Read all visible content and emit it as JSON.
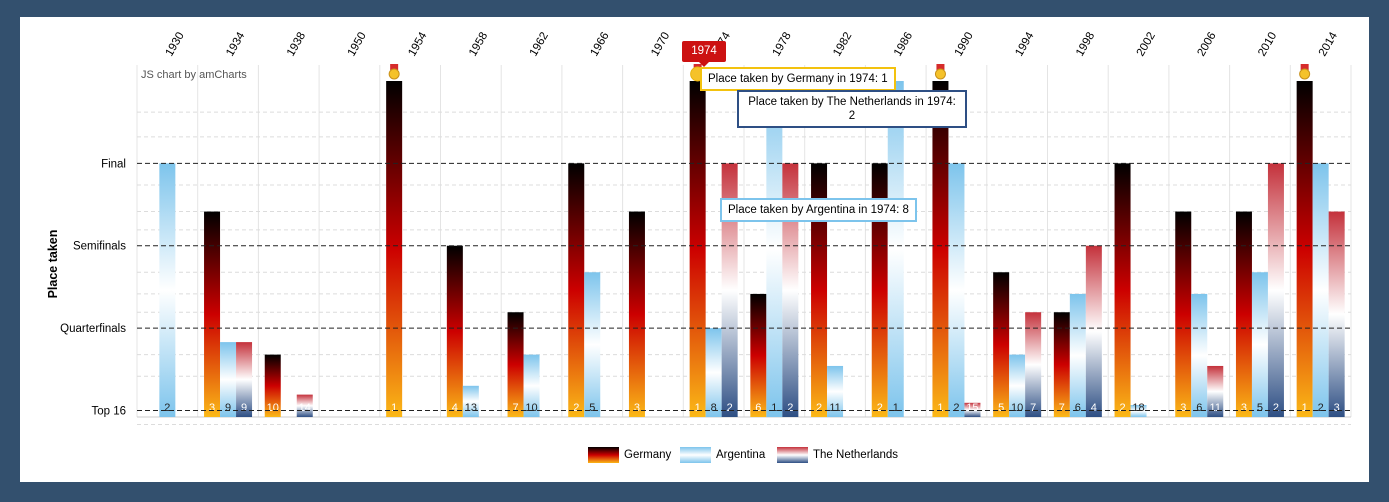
{
  "credit": "JS chart by amCharts",
  "colors": {
    "background_outer": "#33506e",
    "germany_gradient": [
      "#000000",
      "#cc0000",
      "#fbb817"
    ],
    "argentina_gradient": [
      "#7dc4ec",
      "#ffffff",
      "#7dc4ec"
    ],
    "netherlands_gradient": [
      "#c4313b",
      "#ffffff",
      "#2e4f84"
    ],
    "highlight": "#cc1111"
  },
  "icons": [
    "medal-icon"
  ],
  "chart_data": {
    "type": "bar",
    "ylabel": "Place taken",
    "y_reversed": true,
    "y_scale": "log",
    "ylim": [
      1,
      20
    ],
    "y_guides": [
      {
        "label": "Final",
        "value": 2
      },
      {
        "label": "Semifinals",
        "value": 4
      },
      {
        "label": "Quarterfinals",
        "value": 8
      },
      {
        "label": "Top 16",
        "value": 16
      }
    ],
    "categories": [
      "1930",
      "1934",
      "1938",
      "1950",
      "1954",
      "1958",
      "1962",
      "1966",
      "1970",
      "1974",
      "1978",
      "1982",
      "1986",
      "1990",
      "1994",
      "1998",
      "2002",
      "2006",
      "2010",
      "2014"
    ],
    "series": [
      {
        "name": "Germany",
        "values": [
          null,
          3,
          10,
          null,
          1,
          4,
          7,
          2,
          3,
          1,
          6,
          2,
          2,
          1,
          5,
          7,
          2,
          3,
          3,
          1
        ]
      },
      {
        "name": "Argentina",
        "values": [
          2,
          9,
          null,
          null,
          null,
          13,
          10,
          5,
          null,
          8,
          1,
          11,
          1,
          2,
          10,
          6,
          18,
          6,
          5,
          2
        ]
      },
      {
        "name": "The Netherlands",
        "values": [
          null,
          9,
          14,
          null,
          null,
          null,
          null,
          null,
          null,
          2,
          2,
          null,
          null,
          15,
          7,
          4,
          null,
          11,
          2,
          3
        ]
      }
    ],
    "legend": [
      "Germany",
      "Argentina",
      "The Netherlands"
    ],
    "legend_position": "bottom",
    "winner_markers": [
      "1954",
      "1974",
      "1990",
      "2014"
    ],
    "highlighted_category": "1974",
    "tooltips": [
      "Place taken by Germany in 1974: 1",
      "Place taken by The Netherlands in 1974: 2",
      "Place taken by Argentina in 1974: 8"
    ]
  }
}
